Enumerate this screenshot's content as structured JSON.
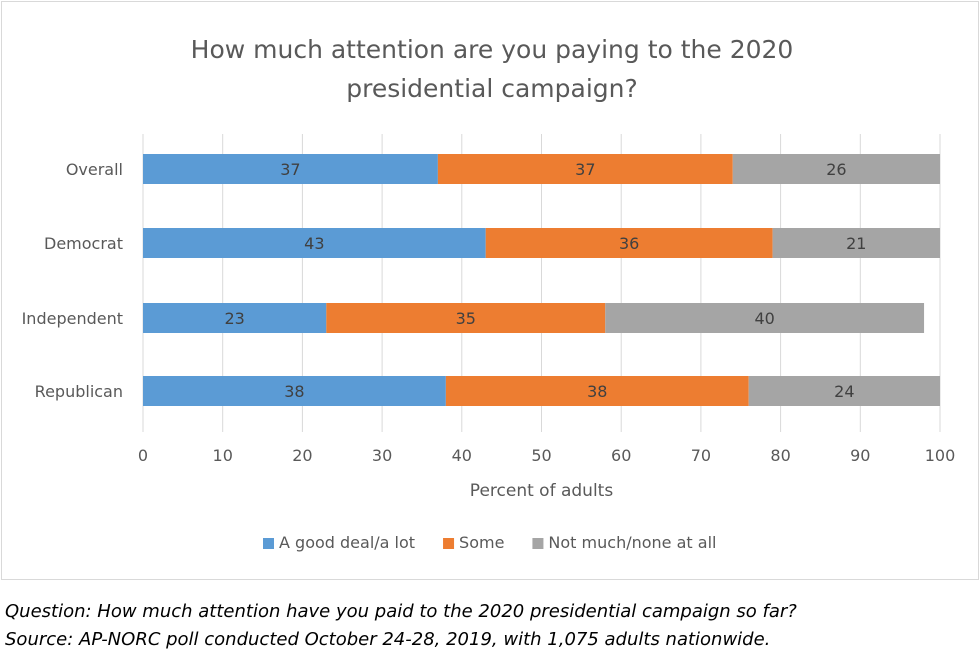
{
  "chart_data": {
    "type": "bar",
    "orientation": "horizontal",
    "stacked": true,
    "title": "How much attention are you paying to the 2020 presidential campaign?",
    "title_lines": [
      "How much attention are you paying to the 2020",
      "presidential campaign?"
    ],
    "xlabel": "Percent of adults",
    "ylabel": "",
    "xlim": [
      0,
      100
    ],
    "xticks": [
      "0",
      "10",
      "20",
      "30",
      "40",
      "50",
      "60",
      "70",
      "80",
      "90",
      "100"
    ],
    "grid": "vertical",
    "legend": "bottom",
    "categories": [
      "Overall",
      "Democrat",
      "Independent",
      "Republican"
    ],
    "series": [
      {
        "name": "A good deal/a lot",
        "color": "#5b9bd5",
        "values": [
          37,
          43,
          23,
          38
        ]
      },
      {
        "name": "Some",
        "color": "#ed7d31",
        "values": [
          37,
          36,
          35,
          38
        ]
      },
      {
        "name": "Not much/none at all",
        "color": "#a5a5a5",
        "values": [
          26,
          21,
          40,
          24
        ]
      }
    ]
  },
  "footnotes": {
    "question": "Question: How much attention have you paid to the 2020 presidential campaign so far?",
    "source": "Source: AP-NORC poll conducted October 24-28, 2019, with 1,075 adults nationwide."
  }
}
